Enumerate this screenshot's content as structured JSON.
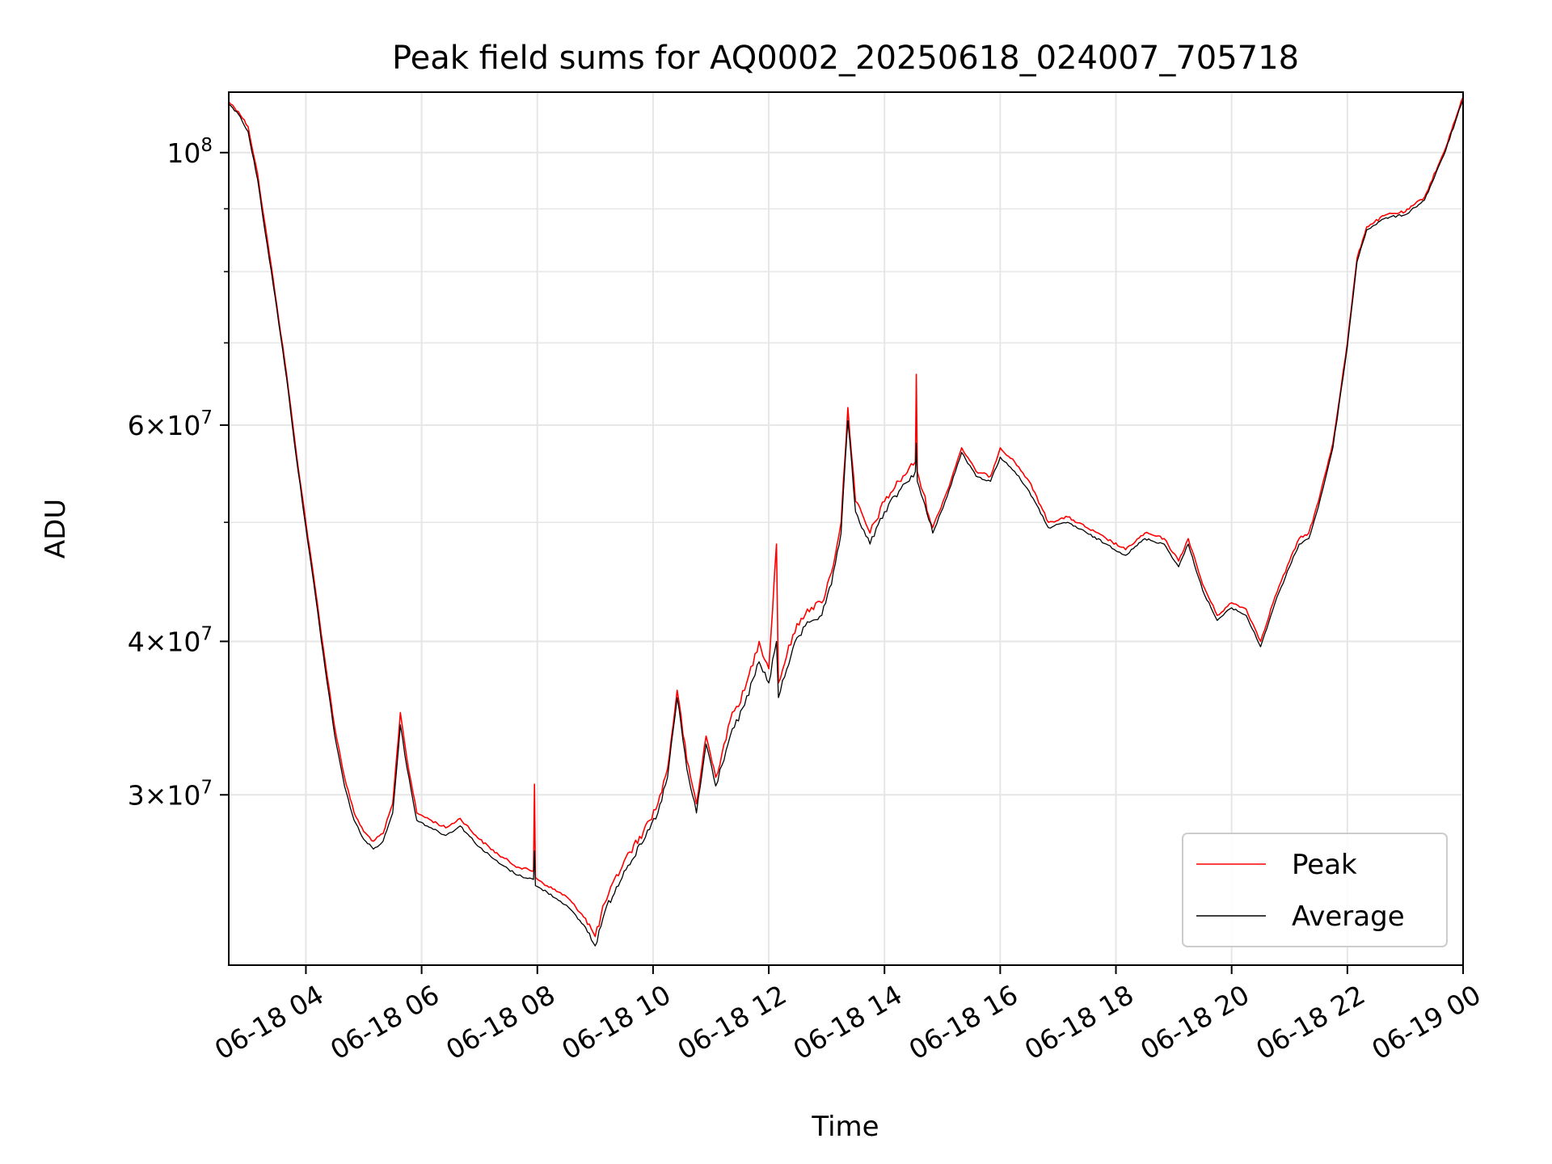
{
  "chart_data": {
    "type": "line",
    "title": "Peak field sums for AQ0002_20250618_024007_705718",
    "xlabel": "Time",
    "ylabel": "ADU",
    "x_range": [
      "06-18 02:40",
      "06-19 00:00"
    ],
    "y_range": [
      21800000,
      112000000
    ],
    "y_scale": "log",
    "grid": true,
    "legend_position": "lower-right",
    "x_ticks": [
      {
        "t": "06-18 04:00",
        "label": "06-18 04"
      },
      {
        "t": "06-18 06:00",
        "label": "06-18 06"
      },
      {
        "t": "06-18 08:00",
        "label": "06-18 08"
      },
      {
        "t": "06-18 10:00",
        "label": "06-18 10"
      },
      {
        "t": "06-18 12:00",
        "label": "06-18 12"
      },
      {
        "t": "06-18 14:00",
        "label": "06-18 14"
      },
      {
        "t": "06-18 16:00",
        "label": "06-18 16"
      },
      {
        "t": "06-18 18:00",
        "label": "06-18 18"
      },
      {
        "t": "06-18 20:00",
        "label": "06-18 20"
      },
      {
        "t": "06-18 22:00",
        "label": "06-18 22"
      },
      {
        "t": "06-19 00:00",
        "label": "06-19 00"
      }
    ],
    "y_ticks": [
      {
        "value": 100000000,
        "mant": "",
        "exp": "8"
      },
      {
        "value": 60000000,
        "mant": "6",
        "exp": "7"
      },
      {
        "value": 40000000,
        "mant": "4",
        "exp": "7"
      },
      {
        "value": 30000000,
        "mant": "3",
        "exp": "7"
      }
    ],
    "y_minor_ticks": [
      50000000,
      70000000,
      80000000,
      90000000
    ],
    "series": [
      {
        "name": "Peak",
        "color": "#ff0000",
        "points": [
          [
            "06-18 02:40",
            110000000
          ],
          [
            "06-18 02:50",
            108000000
          ],
          [
            "06-18 03:00",
            105000000
          ],
          [
            "06-18 03:10",
            96000000
          ],
          [
            "06-18 03:15",
            90000000
          ],
          [
            "06-18 03:20",
            85000000
          ],
          [
            "06-18 03:30",
            75000000
          ],
          [
            "06-18 03:40",
            66000000
          ],
          [
            "06-18 03:50",
            57000000
          ],
          [
            "06-18 04:00",
            50000000
          ],
          [
            "06-18 04:10",
            44000000
          ],
          [
            "06-18 04:20",
            38500000
          ],
          [
            "06-18 04:30",
            34000000
          ],
          [
            "06-18 04:40",
            31000000
          ],
          [
            "06-18 04:50",
            29000000
          ],
          [
            "06-18 05:00",
            28000000
          ],
          [
            "06-18 05:10",
            27500000
          ],
          [
            "06-18 05:20",
            27900000
          ],
          [
            "06-18 05:30",
            29500000
          ],
          [
            "06-18 05:38",
            35000000
          ],
          [
            "06-18 05:45",
            32000000
          ],
          [
            "06-18 05:55",
            29000000
          ],
          [
            "06-18 06:10",
            28600000
          ],
          [
            "06-18 06:25",
            28200000
          ],
          [
            "06-18 06:40",
            28700000
          ],
          [
            "06-18 07:00",
            27600000
          ],
          [
            "06-18 07:20",
            26800000
          ],
          [
            "06-18 07:40",
            26200000
          ],
          [
            "06-18 07:56",
            26000000
          ],
          [
            "06-18 07:57",
            30600000
          ],
          [
            "06-18 07:58",
            25700000
          ],
          [
            "06-18 08:10",
            25300000
          ],
          [
            "06-18 08:30",
            24800000
          ],
          [
            "06-18 08:50",
            23800000
          ],
          [
            "06-18 09:00",
            23000000
          ],
          [
            "06-18 09:10",
            24500000
          ],
          [
            "06-18 09:30",
            26500000
          ],
          [
            "06-18 09:50",
            28000000
          ],
          [
            "06-18 10:05",
            29500000
          ],
          [
            "06-18 10:15",
            31500000
          ],
          [
            "06-18 10:25",
            36500000
          ],
          [
            "06-18 10:35",
            32000000
          ],
          [
            "06-18 10:45",
            29500000
          ],
          [
            "06-18 10:55",
            33500000
          ],
          [
            "06-18 11:05",
            31000000
          ],
          [
            "06-18 11:20",
            34500000
          ],
          [
            "06-18 11:35",
            36500000
          ],
          [
            "06-18 11:50",
            40000000
          ],
          [
            "06-18 12:00",
            38000000
          ],
          [
            "06-18 12:08",
            48000000
          ],
          [
            "06-18 12:10",
            37000000
          ],
          [
            "06-18 12:25",
            40500000
          ],
          [
            "06-18 12:40",
            42500000
          ],
          [
            "06-18 12:55",
            43000000
          ],
          [
            "06-18 13:05",
            45500000
          ],
          [
            "06-18 13:15",
            50000000
          ],
          [
            "06-18 13:22",
            62000000
          ],
          [
            "06-18 13:30",
            52000000
          ],
          [
            "06-18 13:45",
            49000000
          ],
          [
            "06-18 14:00",
            52000000
          ],
          [
            "06-18 14:15",
            54000000
          ],
          [
            "06-18 14:32",
            56000000
          ],
          [
            "06-18 14:33",
            66000000
          ],
          [
            "06-18 14:34",
            55000000
          ],
          [
            "06-18 14:50",
            49500000
          ],
          [
            "06-18 15:05",
            53000000
          ],
          [
            "06-18 15:20",
            57500000
          ],
          [
            "06-18 15:35",
            55000000
          ],
          [
            "06-18 15:50",
            54500000
          ],
          [
            "06-18 16:00",
            57500000
          ],
          [
            "06-18 16:15",
            56000000
          ],
          [
            "06-18 16:30",
            54000000
          ],
          [
            "06-18 16:50",
            50000000
          ],
          [
            "06-18 17:10",
            50500000
          ],
          [
            "06-18 17:30",
            49500000
          ],
          [
            "06-18 17:50",
            48500000
          ],
          [
            "06-18 18:10",
            47500000
          ],
          [
            "06-18 18:30",
            49000000
          ],
          [
            "06-18 18:50",
            48500000
          ],
          [
            "06-18 19:05",
            46500000
          ],
          [
            "06-18 19:15",
            48500000
          ],
          [
            "06-18 19:30",
            44500000
          ],
          [
            "06-18 19:45",
            42000000
          ],
          [
            "06-18 20:00",
            43000000
          ],
          [
            "06-18 20:15",
            42500000
          ],
          [
            "06-18 20:30",
            40000000
          ],
          [
            "06-18 20:45",
            43500000
          ],
          [
            "06-18 21:00",
            46500000
          ],
          [
            "06-18 21:10",
            48500000
          ],
          [
            "06-18 21:20",
            49000000
          ],
          [
            "06-18 21:30",
            52000000
          ],
          [
            "06-18 21:45",
            58000000
          ],
          [
            "06-18 22:00",
            70000000
          ],
          [
            "06-18 22:10",
            82000000
          ],
          [
            "06-18 22:20",
            87000000
          ],
          [
            "06-18 22:40",
            89000000
          ],
          [
            "06-18 23:00",
            89500000
          ],
          [
            "06-18 23:20",
            92000000
          ],
          [
            "06-18 23:40",
            100000000
          ],
          [
            "06-19 00:00",
            111000000
          ]
        ]
      },
      {
        "name": "Average",
        "color": "#000000",
        "points": [
          [
            "06-18 02:40",
            109500000
          ],
          [
            "06-18 02:50",
            107500000
          ],
          [
            "06-18 03:00",
            104000000
          ],
          [
            "06-18 03:10",
            95000000
          ],
          [
            "06-18 03:15",
            89000000
          ],
          [
            "06-18 03:20",
            84000000
          ],
          [
            "06-18 03:30",
            74500000
          ],
          [
            "06-18 03:40",
            65500000
          ],
          [
            "06-18 03:50",
            56500000
          ],
          [
            "06-18 04:00",
            49500000
          ],
          [
            "06-18 04:10",
            43500000
          ],
          [
            "06-18 04:20",
            38000000
          ],
          [
            "06-18 04:30",
            33500000
          ],
          [
            "06-18 04:40",
            30500000
          ],
          [
            "06-18 04:50",
            28600000
          ],
          [
            "06-18 05:00",
            27600000
          ],
          [
            "06-18 05:10",
            27100000
          ],
          [
            "06-18 05:20",
            27500000
          ],
          [
            "06-18 05:30",
            29000000
          ],
          [
            "06-18 05:38",
            34200000
          ],
          [
            "06-18 05:45",
            31500000
          ],
          [
            "06-18 05:55",
            28600000
          ],
          [
            "06-18 06:10",
            28200000
          ],
          [
            "06-18 06:25",
            27800000
          ],
          [
            "06-18 06:40",
            28300000
          ],
          [
            "06-18 07:00",
            27200000
          ],
          [
            "06-18 07:20",
            26400000
          ],
          [
            "06-18 07:40",
            25800000
          ],
          [
            "06-18 07:56",
            25600000
          ],
          [
            "06-18 07:57",
            27000000
          ],
          [
            "06-18 07:58",
            25300000
          ],
          [
            "06-18 08:10",
            25000000
          ],
          [
            "06-18 08:30",
            24400000
          ],
          [
            "06-18 08:50",
            23400000
          ],
          [
            "06-18 09:00",
            22600000
          ],
          [
            "06-18 09:10",
            24100000
          ],
          [
            "06-18 09:30",
            26000000
          ],
          [
            "06-18 09:50",
            27500000
          ],
          [
            "06-18 10:05",
            29000000
          ],
          [
            "06-18 10:15",
            31000000
          ],
          [
            "06-18 10:25",
            36000000
          ],
          [
            "06-18 10:35",
            31500000
          ],
          [
            "06-18 10:45",
            29000000
          ],
          [
            "06-18 10:55",
            33000000
          ],
          [
            "06-18 11:05",
            30500000
          ],
          [
            "06-18 11:20",
            33500000
          ],
          [
            "06-18 11:35",
            35500000
          ],
          [
            "06-18 11:50",
            38500000
          ],
          [
            "06-18 12:00",
            37000000
          ],
          [
            "06-18 12:08",
            40000000
          ],
          [
            "06-18 12:10",
            36000000
          ],
          [
            "06-18 12:25",
            39500000
          ],
          [
            "06-18 12:40",
            41500000
          ],
          [
            "06-18 12:55",
            42000000
          ],
          [
            "06-18 13:05",
            44500000
          ],
          [
            "06-18 13:15",
            49000000
          ],
          [
            "06-18 13:22",
            60500000
          ],
          [
            "06-18 13:30",
            51000000
          ],
          [
            "06-18 13:45",
            48000000
          ],
          [
            "06-18 14:00",
            51000000
          ],
          [
            "06-18 14:15",
            53000000
          ],
          [
            "06-18 14:32",
            55000000
          ],
          [
            "06-18 14:33",
            58000000
          ],
          [
            "06-18 14:34",
            54000000
          ],
          [
            "06-18 14:50",
            49000000
          ],
          [
            "06-18 15:05",
            52500000
          ],
          [
            "06-18 15:20",
            57000000
          ],
          [
            "06-18 15:35",
            54500000
          ],
          [
            "06-18 15:50",
            54000000
          ],
          [
            "06-18 16:00",
            56500000
          ],
          [
            "06-18 16:15",
            55000000
          ],
          [
            "06-18 16:30",
            53000000
          ],
          [
            "06-18 16:50",
            49500000
          ],
          [
            "06-18 17:10",
            50000000
          ],
          [
            "06-18 17:30",
            49000000
          ],
          [
            "06-18 17:50",
            48000000
          ],
          [
            "06-18 18:10",
            47000000
          ],
          [
            "06-18 18:30",
            48500000
          ],
          [
            "06-18 18:50",
            48000000
          ],
          [
            "06-18 19:05",
            46000000
          ],
          [
            "06-18 19:15",
            48000000
          ],
          [
            "06-18 19:30",
            44000000
          ],
          [
            "06-18 19:45",
            41600000
          ],
          [
            "06-18 20:00",
            42600000
          ],
          [
            "06-18 20:15",
            42000000
          ],
          [
            "06-18 20:30",
            39600000
          ],
          [
            "06-18 20:45",
            43000000
          ],
          [
            "06-18 21:00",
            46000000
          ],
          [
            "06-18 21:10",
            48000000
          ],
          [
            "06-18 21:20",
            48500000
          ],
          [
            "06-18 21:30",
            51500000
          ],
          [
            "06-18 21:45",
            57500000
          ],
          [
            "06-18 22:00",
            69500000
          ],
          [
            "06-18 22:10",
            81500000
          ],
          [
            "06-18 22:20",
            86500000
          ],
          [
            "06-18 22:40",
            88500000
          ],
          [
            "06-18 23:00",
            89000000
          ],
          [
            "06-18 23:20",
            91500000
          ],
          [
            "06-18 23:40",
            99500000
          ],
          [
            "06-19 00:00",
            110500000
          ]
        ]
      }
    ]
  }
}
